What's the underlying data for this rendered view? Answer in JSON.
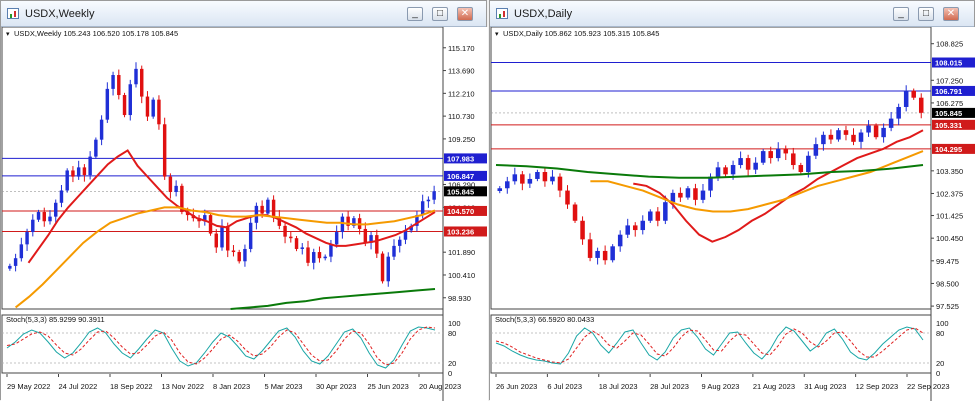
{
  "left_window": {
    "title": "USDX,Weekly",
    "buttons": [
      "_",
      "□",
      "✕"
    ],
    "info_text": "USDX,Weekly  105.243 106.520 105.178 105.845",
    "stoch_label": "Stoch(5,3,3) 85.9299 90.3911",
    "price_labels": [
      "115.170",
      "113.690",
      "112.210",
      "110.730",
      "109.250",
      "106.290",
      "104.810",
      "101.890",
      "100.410",
      "98.930"
    ],
    "osc_labels": [
      "100",
      "80",
      "20",
      "0"
    ],
    "date_labels": [
      "29 May 2022",
      "24 Jul 2022",
      "18 Sep 2022",
      "13 Nov 2022",
      "8 Jan 2023",
      "5 Mar 2023",
      "30 Apr 2023",
      "25 Jun 2023",
      "20 Aug 2023"
    ],
    "levels": [
      {
        "value": "107.983",
        "kind": "resistance",
        "color": "#1f1fd0"
      },
      {
        "value": "106.847",
        "kind": "resistance",
        "color": "#1f1fd0"
      },
      {
        "value": "105.845",
        "kind": "current",
        "color": "#000000"
      },
      {
        "value": "104.570",
        "kind": "support",
        "color": "#d01a1a"
      },
      {
        "value": "103.236",
        "kind": "support",
        "color": "#d01a1a"
      }
    ]
  },
  "right_window": {
    "title": "USDX,Daily",
    "buttons": [
      "_",
      "□",
      "✕"
    ],
    "info_text": "USDX,Daily  105.862 105.923 105.315 105.845",
    "stoch_label": "Stoch(5,3,3) 66.5920 80.0433",
    "price_labels": [
      "108.825",
      "107.250",
      "106.275",
      "103.350",
      "102.375",
      "101.425",
      "100.450",
      "99.475",
      "98.500",
      "97.525"
    ],
    "osc_labels": [
      "100",
      "80",
      "20",
      "0"
    ],
    "date_labels": [
      "26 Jun 2023",
      "6 Jul 2023",
      "18 Jul 2023",
      "28 Jul 2023",
      "9 Aug 2023",
      "21 Aug 2023",
      "31 Aug 2023",
      "12 Sep 2023",
      "22 Sep 2023"
    ],
    "levels": [
      {
        "value": "108.015",
        "kind": "resistance",
        "color": "#1f1fd0"
      },
      {
        "value": "106.791",
        "kind": "resistance",
        "color": "#1f1fd0"
      },
      {
        "value": "105.845",
        "kind": "current",
        "color": "#000000"
      },
      {
        "value": "105.331",
        "kind": "support",
        "color": "#d01a1a"
      },
      {
        "value": "104.295",
        "kind": "support",
        "color": "#d01a1a"
      }
    ]
  },
  "colors": {
    "bull": "#1f2fd6",
    "bear": "#e01010",
    "ma_fast": "#e01a1a",
    "ma_mid": "#f59a00",
    "ma_slow": "#0a7a0a",
    "stoch_main": "#1aa6a6",
    "stoch_signal": "#e02020"
  },
  "chart_data": [
    {
      "type": "candlestick",
      "title": "USDX,Weekly",
      "ylim": [
        98.2,
        116.0
      ],
      "ohlc_last": {
        "open": 105.243,
        "high": 106.52,
        "low": 105.178,
        "close": 105.845
      },
      "x_ticks": [
        "29 May 2022",
        "24 Jul 2022",
        "18 Sep 2022",
        "13 Nov 2022",
        "8 Jan 2023",
        "5 Mar 2023",
        "30 Apr 2023",
        "25 Jun 2023",
        "20 Aug 2023"
      ],
      "closes": [
        101.0,
        101.5,
        102.4,
        103.2,
        104.0,
        104.5,
        103.9,
        104.2,
        105.1,
        105.9,
        107.2,
        106.8,
        107.4,
        106.9,
        108.1,
        109.2,
        110.5,
        112.5,
        113.4,
        112.1,
        110.8,
        112.8,
        113.8,
        112.0,
        110.7,
        111.8,
        110.2,
        106.8,
        105.8,
        106.2,
        104.5,
        104.3,
        104.1,
        103.9,
        104.3,
        103.1,
        102.2,
        103.6,
        102.0,
        101.9,
        101.3,
        102.1,
        103.8,
        104.9,
        104.4,
        105.3,
        104.2,
        103.6,
        102.9,
        102.8,
        102.1,
        102.2,
        101.2,
        101.9,
        101.5,
        101.6,
        102.4,
        103.2,
        104.2,
        103.6,
        104.1,
        103.4,
        102.5,
        103.0,
        101.8,
        100.0,
        101.6,
        102.3,
        102.7,
        103.3,
        103.6,
        104.3,
        105.2,
        105.3,
        105.85
      ],
      "series": [
        {
          "name": "MA fast",
          "values": [
            101.2,
            102.1,
            103.0,
            104.0,
            104.8,
            105.5,
            106.2,
            106.9,
            107.6,
            108.1,
            108.5,
            107.5,
            106.8,
            106.1,
            105.4,
            104.9,
            104.5,
            104.1,
            103.9,
            103.6,
            103.5,
            103.9,
            104.1,
            104.3,
            104.3,
            104.1,
            103.8,
            103.5,
            103.1,
            102.8,
            102.5,
            102.3,
            102.3,
            102.4,
            102.5,
            102.6,
            102.8,
            103.0,
            103.3,
            103.7,
            104.1,
            104.5
          ]
        },
        {
          "name": "MA mid",
          "values": [
            98.3,
            99.0,
            99.8,
            100.7,
            101.6,
            102.5,
            103.2,
            103.8,
            104.1,
            104.4,
            104.6,
            104.8,
            104.8,
            104.6,
            104.5,
            104.3,
            104.2,
            104.2,
            104.3,
            104.2,
            104.1,
            104.0,
            103.9,
            103.8,
            103.8,
            103.7,
            103.7,
            103.8,
            103.9,
            104.1,
            104.3,
            104.6
          ]
        },
        {
          "name": "MA slow",
          "values": [
            98.2,
            98.3,
            98.4,
            98.6,
            98.7,
            98.9,
            99.0,
            99.1,
            99.2,
            99.3,
            99.4,
            99.5
          ]
        }
      ],
      "stochastic": {
        "label": "Stoch(5,3,3) 85.9299 90.3911",
        "main": [
          50,
          62,
          78,
          86,
          80,
          62,
          42,
          30,
          40,
          60,
          82,
          90,
          80,
          58,
          40,
          30,
          48,
          68,
          86,
          80,
          50,
          24,
          14,
          20,
          40,
          62,
          80,
          72,
          54,
          34,
          28,
          44,
          64,
          84,
          90,
          72,
          44,
          24,
          18,
          34,
          58,
          82,
          88,
          70,
          40,
          16,
          10,
          26,
          56,
          84,
          92,
          90,
          86
        ],
        "signal": [
          55,
          58,
          68,
          78,
          82,
          74,
          56,
          40,
          36,
          48,
          66,
          82,
          84,
          70,
          52,
          38,
          40,
          56,
          74,
          82,
          66,
          40,
          22,
          18,
          30,
          48,
          68,
          76,
          64,
          46,
          34,
          38,
          52,
          72,
          86,
          80,
          58,
          36,
          24,
          26,
          44,
          68,
          84,
          80,
          58,
          30,
          16,
          20,
          40,
          68,
          86,
          92,
          90
        ]
      }
    },
    {
      "type": "candlestick",
      "title": "USDX,Daily",
      "ylim": [
        97.4,
        109.2
      ],
      "ohlc_last": {
        "open": 105.862,
        "high": 105.923,
        "low": 105.315,
        "close": 105.845
      },
      "x_ticks": [
        "26 Jun 2023",
        "6 Jul 2023",
        "18 Jul 2023",
        "28 Jul 2023",
        "9 Aug 2023",
        "21 Aug 2023",
        "31 Aug 2023",
        "12 Sep 2023",
        "22 Sep 2023"
      ],
      "closes": [
        102.6,
        102.9,
        103.2,
        102.8,
        103.0,
        103.3,
        102.9,
        103.1,
        102.5,
        101.9,
        101.2,
        100.4,
        99.6,
        99.9,
        99.5,
        100.1,
        100.6,
        101.0,
        100.8,
        101.2,
        101.6,
        101.2,
        102.0,
        102.4,
        102.2,
        102.6,
        102.1,
        102.5,
        103.1,
        103.5,
        103.2,
        103.6,
        103.9,
        103.4,
        103.7,
        104.2,
        103.9,
        104.3,
        104.1,
        103.6,
        103.3,
        104.0,
        104.5,
        104.9,
        104.7,
        105.1,
        104.9,
        104.6,
        105.0,
        105.3,
        104.8,
        105.2,
        105.6,
        106.1,
        106.8,
        106.5,
        105.85
      ],
      "series": [
        {
          "name": "MA fast",
          "values": [
            102.8,
            102.7,
            102.4,
            101.9,
            101.2,
            100.6,
            100.3,
            100.5,
            100.8,
            101.2,
            101.5,
            101.9,
            102.3,
            102.6,
            103.0,
            103.3,
            103.6,
            103.9,
            104.1,
            104.3,
            104.6,
            104.8,
            105.1
          ]
        },
        {
          "name": "MA mid",
          "values": [
            102.9,
            102.9,
            102.7,
            102.5,
            102.2,
            101.9,
            101.7,
            101.6,
            101.6,
            101.7,
            101.9,
            102.1,
            102.4,
            102.7,
            102.9,
            103.1,
            103.3,
            103.6,
            103.9,
            104.2
          ]
        },
        {
          "name": "MA slow",
          "values": [
            103.6,
            103.55,
            103.45,
            103.3,
            103.2,
            103.1,
            103.05,
            103.05,
            103.1,
            103.15,
            103.2,
            103.3,
            103.35,
            103.45,
            103.6
          ]
        }
      ],
      "stochastic": {
        "label": "Stoch(5,3,3) 66.5920 80.0433",
        "main": [
          60,
          54,
          44,
          36,
          30,
          26,
          24,
          20,
          18,
          40,
          74,
          90,
          80,
          56,
          40,
          60,
          82,
          86,
          60,
          36,
          26,
          42,
          70,
          86,
          90,
          72,
          48,
          36,
          58,
          80,
          82,
          60,
          40,
          28,
          46,
          74,
          92,
          84,
          64,
          44,
          56,
          80,
          88,
          68,
          42,
          30,
          26,
          40,
          58,
          72,
          86,
          92,
          88,
          66
        ],
        "signal": [
          64,
          60,
          52,
          42,
          36,
          30,
          26,
          22,
          20,
          28,
          50,
          72,
          84,
          74,
          56,
          50,
          64,
          80,
          76,
          58,
          38,
          34,
          50,
          72,
          86,
          84,
          66,
          46,
          44,
          64,
          78,
          76,
          58,
          40,
          36,
          54,
          78,
          88,
          80,
          62,
          52,
          64,
          80,
          82,
          64,
          44,
          32,
          32,
          44,
          58,
          72,
          86,
          90,
          80
        ]
      }
    }
  ]
}
